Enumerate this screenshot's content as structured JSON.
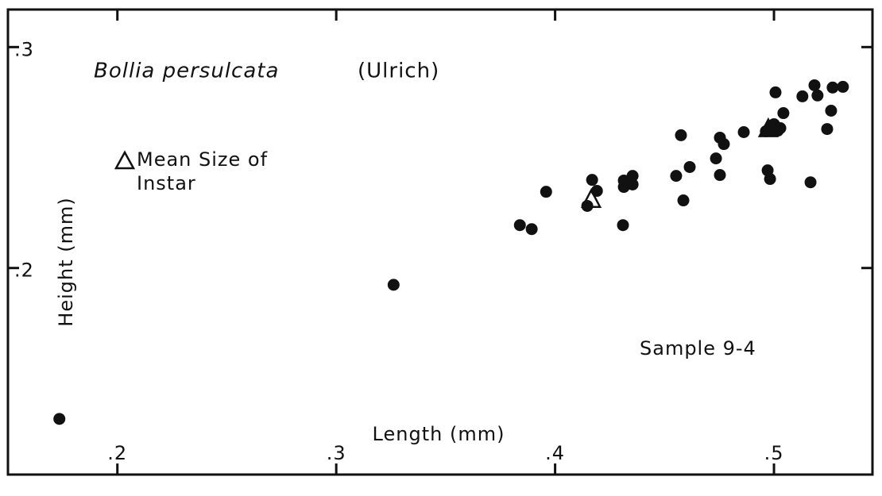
{
  "chart_data": {
    "type": "scatter",
    "title": "Bollia persulcata",
    "title_author": "(Ulrich)",
    "x_label": "Length (mm)",
    "y_label": "Height (mm)",
    "annotation": "Sample 9-4",
    "xlim": [
      0.15,
      0.545
    ],
    "ylim": [
      0.1065,
      0.317
    ],
    "xticks": [
      {
        "value": 0.2,
        "label": ".2"
      },
      {
        "value": 0.3,
        "label": ".3"
      },
      {
        "value": 0.4,
        "label": ".4"
      },
      {
        "value": 0.5,
        "label": ".5"
      }
    ],
    "yticks": [
      {
        "value": 0.2,
        "label": ".2"
      },
      {
        "value": 0.3,
        "label": ".3"
      }
    ],
    "series": [
      {
        "marker": "circle",
        "color": "#111111",
        "x": [
          0.1735,
          0.3262,
          0.3839,
          0.3893,
          0.3959,
          0.4169,
          0.4191,
          0.4147,
          0.431,
          0.4314,
          0.4314,
          0.4354,
          0.4354,
          0.4553,
          0.4575,
          0.4586,
          0.4615,
          0.4735,
          0.4753,
          0.4753,
          0.4771,
          0.4862,
          0.4963,
          0.4971,
          0.4982,
          0.5,
          0.5007,
          0.5029,
          0.5043,
          0.513,
          0.5185,
          0.5199,
          0.5243,
          0.5261,
          0.5268,
          0.5315,
          0.5167,
          0.5018
        ],
        "values": [
          0.1317,
          0.1924,
          0.2194,
          0.2176,
          0.2345,
          0.2399,
          0.2349,
          0.2281,
          0.2194,
          0.2396,
          0.2367,
          0.2417,
          0.2378,
          0.2417,
          0.2601,
          0.2306,
          0.2457,
          0.2496,
          0.259,
          0.2421,
          0.2561,
          0.2615,
          0.2619,
          0.2442,
          0.2403,
          0.2651,
          0.2795,
          0.2633,
          0.2701,
          0.2777,
          0.2827,
          0.2781,
          0.2629,
          0.2712,
          0.2817,
          0.282,
          0.2388,
          0.2622
        ]
      },
      {
        "name": "Mean Size of Instar",
        "marker": "triangle",
        "color": "#111111",
        "x": [
          0.4165,
          0.4974
        ],
        "values": [
          0.2309,
          0.2629
        ],
        "filled": [
          false,
          true
        ]
      }
    ]
  }
}
